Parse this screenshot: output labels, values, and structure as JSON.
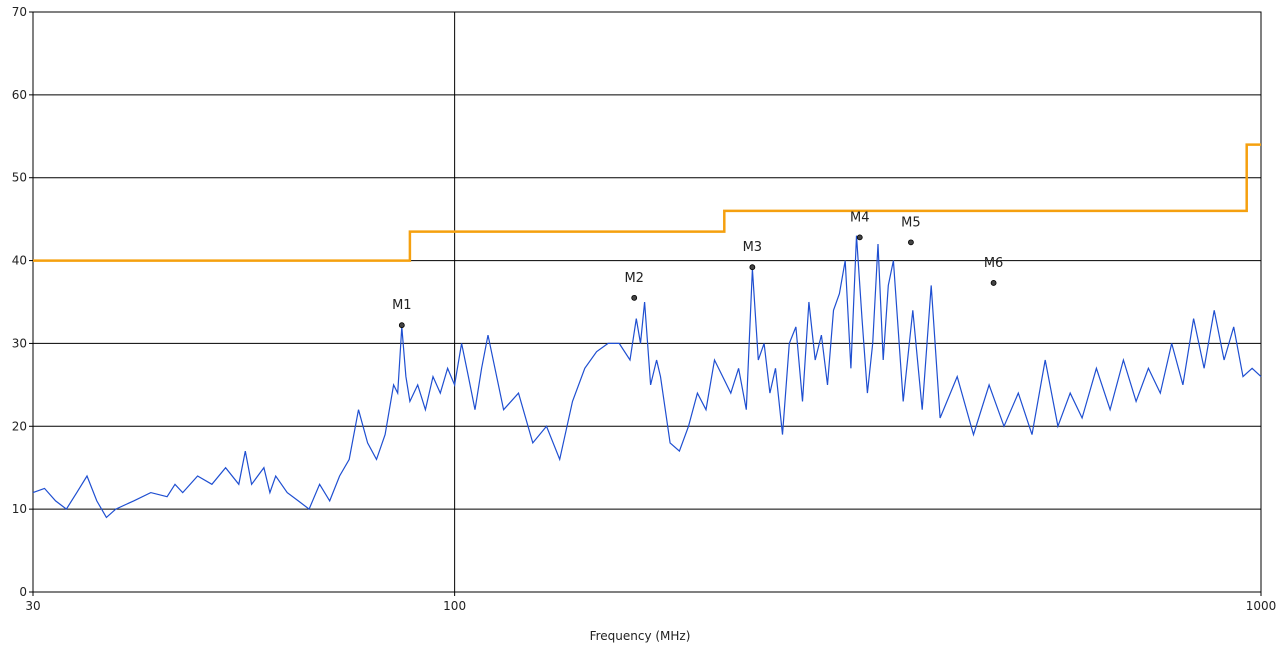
{
  "chart_data": {
    "type": "line",
    "title": "",
    "xlabel": "Frequency (MHz)",
    "ylabel": "",
    "x_scale": "log",
    "xlim": [
      30,
      1000
    ],
    "ylim": [
      0,
      70
    ],
    "x_ticks": [
      30,
      100,
      1000
    ],
    "x_tick_labels": [
      "30",
      "100",
      "1000"
    ],
    "y_ticks": [
      0,
      10,
      20,
      30,
      40,
      50,
      60,
      70
    ],
    "y_tick_labels": [
      "0",
      "10",
      "20",
      "30",
      "40",
      "50",
      "60",
      "70"
    ],
    "grid": true,
    "colors": {
      "limit": "#f5a00f",
      "trace": "#1f4fd1",
      "grid": "#000000"
    },
    "limit_line": {
      "x": [
        30,
        88,
        88,
        216,
        216,
        960,
        960,
        1000
      ],
      "y": [
        40,
        40,
        43.5,
        43.5,
        46,
        46,
        54,
        54
      ]
    },
    "trace": {
      "x": [
        30,
        31,
        32,
        33,
        34,
        35,
        36,
        37,
        38,
        40,
        42,
        44,
        45,
        46,
        48,
        50,
        52,
        54,
        55,
        56,
        58,
        59,
        60,
        62,
        64,
        66,
        68,
        70,
        72,
        74,
        76,
        78,
        80,
        82,
        84,
        85,
        86,
        87,
        88,
        90,
        92,
        94,
        96,
        98,
        100,
        102,
        104,
        106,
        108,
        110,
        115,
        120,
        125,
        130,
        135,
        140,
        145,
        150,
        155,
        160,
        165,
        168,
        170,
        172,
        175,
        178,
        180,
        185,
        190,
        195,
        200,
        205,
        210,
        215,
        220,
        225,
        230,
        234,
        238,
        242,
        246,
        250,
        255,
        260,
        265,
        270,
        275,
        280,
        285,
        290,
        295,
        300,
        305,
        310,
        315,
        320,
        325,
        330,
        335,
        340,
        345,
        350,
        360,
        370,
        380,
        390,
        400,
        420,
        440,
        460,
        480,
        500,
        520,
        540,
        560,
        580,
        600,
        625,
        650,
        675,
        700,
        725,
        750,
        775,
        800,
        825,
        850,
        875,
        900,
        925,
        950,
        975,
        1000
      ],
      "y": [
        12,
        12.5,
        11,
        10,
        12,
        14,
        11,
        9,
        10,
        11,
        12,
        11.5,
        13,
        12,
        14,
        13,
        15,
        13,
        17,
        13,
        15,
        12,
        14,
        12,
        11,
        10,
        13,
        11,
        14,
        16,
        22,
        18,
        16,
        19,
        25,
        24,
        32,
        26,
        23,
        25,
        22,
        26,
        24,
        27,
        25,
        30,
        26,
        22,
        27,
        31,
        22,
        24,
        18,
        20,
        16,
        23,
        27,
        29,
        30,
        30,
        28,
        33,
        30,
        35,
        25,
        28,
        26,
        18,
        17,
        20,
        24,
        22,
        28,
        26,
        24,
        27,
        22,
        39,
        28,
        30,
        24,
        27,
        19,
        30,
        32,
        23,
        35,
        28,
        31,
        25,
        34,
        36,
        40,
        27,
        43,
        33,
        24,
        30,
        42,
        28,
        37,
        40,
        23,
        34,
        22,
        37,
        21,
        26,
        19,
        25,
        20,
        24,
        19,
        28,
        20,
        24,
        21,
        27,
        22,
        28,
        23,
        27,
        24,
        30,
        25,
        33,
        27,
        34,
        28,
        32,
        26,
        27,
        26
      ]
    },
    "markers": [
      {
        "label": "M1",
        "x": 86,
        "y": 32.2
      },
      {
        "label": "M2",
        "x": 167,
        "y": 35.5
      },
      {
        "label": "M3",
        "x": 234,
        "y": 39.2
      },
      {
        "label": "M4",
        "x": 318,
        "y": 42.8
      },
      {
        "label": "M5",
        "x": 368,
        "y": 42.2
      },
      {
        "label": "M6",
        "x": 466,
        "y": 37.3
      }
    ]
  }
}
